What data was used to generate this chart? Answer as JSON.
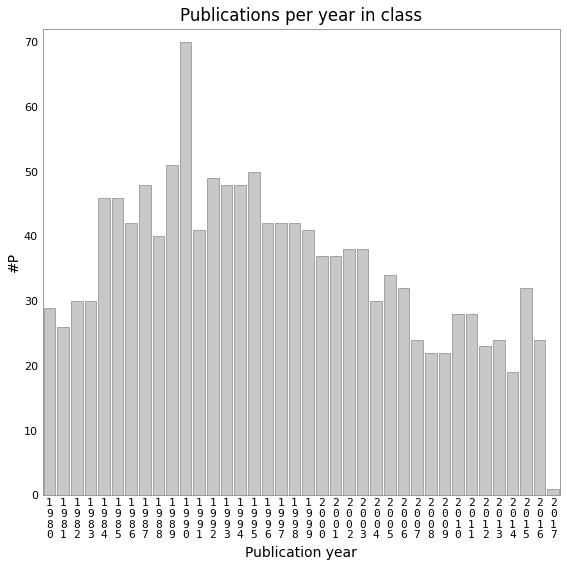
{
  "title": "Publications per year in class",
  "xlabel": "Publication year",
  "ylabel": "#P",
  "categories": [
    "1980",
    "1981",
    "1982",
    "1983",
    "1984",
    "1985",
    "1986",
    "1987",
    "1988",
    "1989",
    "1990",
    "1991",
    "1992",
    "1993",
    "1994",
    "1995",
    "1996",
    "1997",
    "1998",
    "1999",
    "2000",
    "2001",
    "2002",
    "2003",
    "2004",
    "2005",
    "2006",
    "2007",
    "2008",
    "2009",
    "2010",
    "2011",
    "2012",
    "2013",
    "2014",
    "2015",
    "2016",
    "2017"
  ],
  "values": [
    29,
    26,
    30,
    30,
    46,
    46,
    42,
    48,
    40,
    51,
    70,
    41,
    49,
    48,
    48,
    50,
    42,
    42,
    42,
    41,
    37,
    37,
    38,
    38,
    30,
    34,
    32,
    24,
    22,
    22,
    28,
    28,
    23,
    24,
    19,
    32,
    24,
    1
  ],
  "bar_color": "#c8c8c8",
  "bar_edge_color": "#888888",
  "ylim": [
    0,
    72
  ],
  "yticks": [
    0,
    10,
    20,
    30,
    40,
    50,
    60,
    70
  ],
  "bg_color": "#ffffff",
  "title_fontsize": 12,
  "axis_label_fontsize": 10,
  "tick_fontsize": 8
}
